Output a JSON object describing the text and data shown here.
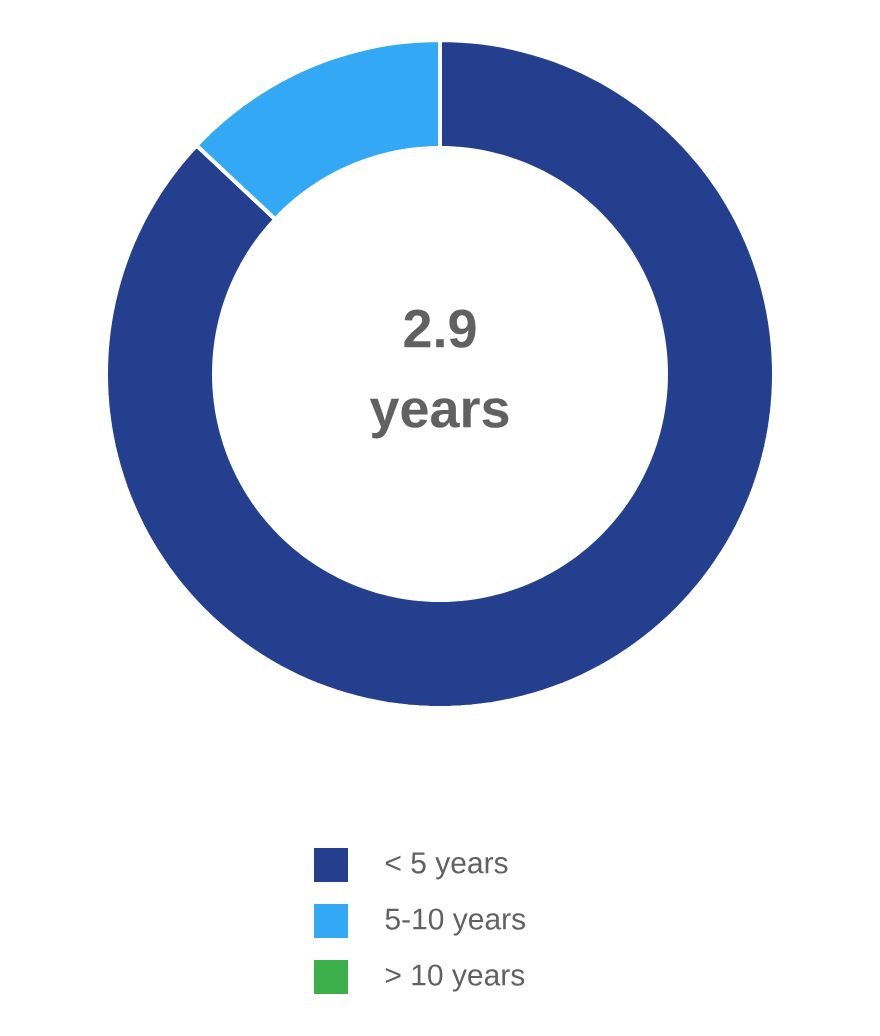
{
  "chart_data": {
    "type": "donut",
    "categories": [
      "< 5 years",
      "5-10 years",
      "> 10 years"
    ],
    "values": [
      87,
      13,
      0
    ],
    "colors": [
      "#253f8f",
      "#33a9f5",
      "#3daf4a"
    ],
    "annotations": [
      "2.9 years"
    ],
    "legend": "bottom"
  }
}
